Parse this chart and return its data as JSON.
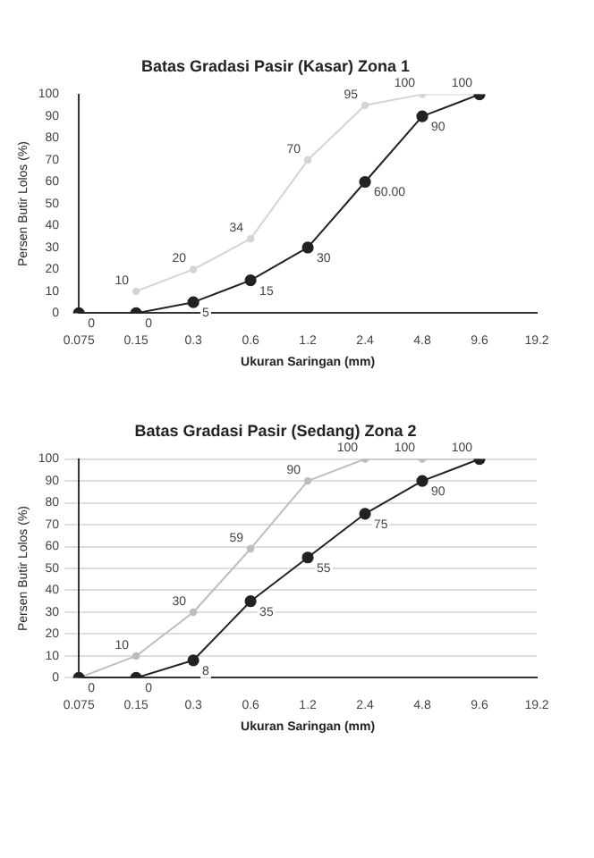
{
  "chart_data": [
    {
      "type": "line",
      "title": "Batas Gradasi Pasir (Kasar) Zona 1",
      "xlabel": "Ukuran Saringan (mm)",
      "ylabel": "Persen Butir Lolos (%)",
      "categories": [
        "0.075",
        "0.15",
        "0.3",
        "0.6",
        "1.2",
        "2.4",
        "4.8",
        "9.6",
        "19.2"
      ],
      "series": [
        {
          "color": "#d4d4d4",
          "values": [
            null,
            10,
            20,
            34,
            70,
            95,
            100,
            100,
            null
          ],
          "value_labels": [
            null,
            "10",
            "20",
            "34",
            "70",
            "95",
            "100",
            "100",
            null
          ]
        },
        {
          "color": "#222222",
          "values": [
            0,
            0,
            5,
            15,
            30,
            60,
            90,
            100,
            null
          ],
          "value_labels": [
            "0",
            "0",
            "5",
            "15",
            "30",
            "60.00",
            "90",
            null,
            null
          ]
        }
      ],
      "ylim": [
        0,
        100
      ],
      "yticks": [
        0,
        10,
        20,
        30,
        40,
        50,
        60,
        70,
        80,
        90,
        100
      ],
      "grid": false,
      "legend": false,
      "marker": "circle"
    },
    {
      "type": "line",
      "title": "Batas Gradasi Pasir (Sedang) Zona 2",
      "xlabel": "Ukuran Saringan (mm)",
      "ylabel": "Persen Butir Lolos (%)",
      "categories": [
        "0.075",
        "0.15",
        "0.3",
        "0.6",
        "1.2",
        "2.4",
        "4.8",
        "9.6",
        "19.2"
      ],
      "series": [
        {
          "color": "#bdbdbd",
          "values": [
            0,
            10,
            30,
            59,
            90,
            100,
            100,
            100,
            null
          ],
          "value_labels": [
            null,
            "10",
            "30",
            "59",
            "90",
            "100",
            "100",
            "100",
            null
          ]
        },
        {
          "color": "#222222",
          "values": [
            0,
            0,
            8,
            35,
            55,
            75,
            90,
            100,
            null
          ],
          "value_labels": [
            "0",
            "0",
            "8",
            "35",
            "55",
            "75",
            "90",
            null,
            null
          ]
        }
      ],
      "ylim": [
        0,
        100
      ],
      "yticks": [
        0,
        10,
        20,
        30,
        40,
        50,
        60,
        70,
        80,
        90,
        100
      ],
      "grid": "y",
      "legend": false,
      "marker": "circle"
    }
  ]
}
